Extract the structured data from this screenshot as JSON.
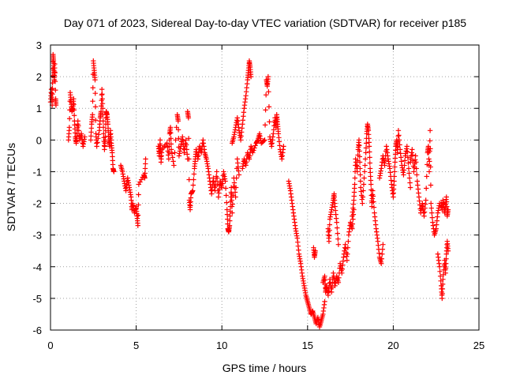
{
  "chart_data": {
    "type": "scatter",
    "title": "Day 071 of 2023, Sidereal Day-to-day VTEC variation (SDTVAR) for receiver p185",
    "xlabel": "GPS time / hours",
    "ylabel": "SDTVAR / TECUs",
    "xlim": [
      0,
      25
    ],
    "ylim": [
      -6,
      3
    ],
    "xticks": [
      0,
      5,
      10,
      15,
      20,
      25
    ],
    "yticks": [
      -6,
      -5,
      -4,
      -3,
      -2,
      -1,
      0,
      1,
      2,
      3
    ],
    "xtick_labels": [
      "0",
      "5",
      "10",
      "15",
      "20",
      "25"
    ],
    "ytick_labels": [
      "-6",
      "-5",
      "-4",
      "-3",
      "-2",
      "-1",
      "0",
      "1",
      "2",
      "3"
    ],
    "grid": true,
    "marker": "plus",
    "color": "#ff0000",
    "series": [
      {
        "name": "SDTVAR",
        "points": [
          [
            0.0,
            1.2
          ],
          [
            0.05,
            1.6
          ],
          [
            0.1,
            1.1
          ],
          [
            0.12,
            1.8
          ],
          [
            0.15,
            2.7
          ],
          [
            0.18,
            2.5
          ],
          [
            0.2,
            2.2
          ],
          [
            0.22,
            1.9
          ],
          [
            0.25,
            2.4
          ],
          [
            0.3,
            1.3
          ],
          [
            0.32,
            1.1
          ],
          [
            1.05,
            0.0
          ],
          [
            1.1,
            0.4
          ],
          [
            1.15,
            1.5
          ],
          [
            1.2,
            1.2
          ],
          [
            1.25,
            0.9
          ],
          [
            1.3,
            1.0
          ],
          [
            1.35,
            1.3
          ],
          [
            1.4,
            0.6
          ],
          [
            1.45,
            0.1
          ],
          [
            1.5,
            -0.1
          ],
          [
            1.55,
            0.2
          ],
          [
            1.6,
            0.6
          ],
          [
            1.7,
            0.0
          ],
          [
            1.8,
            0.2
          ],
          [
            1.9,
            -0.2
          ],
          [
            2.0,
            0.1
          ],
          [
            2.35,
            0.0
          ],
          [
            2.4,
            0.5
          ],
          [
            2.45,
            0.8
          ],
          [
            2.5,
            2.5
          ],
          [
            2.55,
            2.2
          ],
          [
            2.6,
            1.9
          ],
          [
            2.65,
            0.2
          ],
          [
            2.7,
            -0.2
          ],
          [
            2.85,
            0.3
          ],
          [
            2.9,
            0.7
          ],
          [
            2.95,
            0.9
          ],
          [
            3.0,
            1.6
          ],
          [
            3.05,
            1.0
          ],
          [
            3.1,
            0.2
          ],
          [
            3.15,
            -0.3
          ],
          [
            3.2,
            0.1
          ],
          [
            3.25,
            0.9
          ],
          [
            3.3,
            0.8
          ],
          [
            3.35,
            0.5
          ],
          [
            3.4,
            0.0
          ],
          [
            3.45,
            -0.2
          ],
          [
            3.5,
            0.3
          ],
          [
            3.55,
            -0.1
          ],
          [
            3.6,
            -0.4
          ],
          [
            3.65,
            -0.9
          ],
          [
            3.7,
            -1.0
          ],
          [
            4.1,
            -0.8
          ],
          [
            4.2,
            -1.0
          ],
          [
            4.3,
            -1.3
          ],
          [
            4.4,
            -1.6
          ],
          [
            4.5,
            -1.2
          ],
          [
            4.6,
            -1.5
          ],
          [
            4.7,
            -1.8
          ],
          [
            4.75,
            -2.2
          ],
          [
            4.8,
            -2.0
          ],
          [
            4.9,
            -2.3
          ],
          [
            5.0,
            -2.1
          ],
          [
            5.05,
            -2.4
          ],
          [
            5.1,
            -2.7
          ],
          [
            5.15,
            -1.4
          ],
          [
            5.45,
            -1.1
          ],
          [
            5.5,
            -1.2
          ],
          [
            5.55,
            -0.6
          ],
          [
            6.3,
            -0.2
          ],
          [
            6.35,
            -0.5
          ],
          [
            6.4,
            0.0
          ],
          [
            6.45,
            -0.7
          ],
          [
            6.5,
            -0.3
          ],
          [
            6.8,
            -0.1
          ],
          [
            6.9,
            -0.6
          ],
          [
            6.95,
            0.2
          ],
          [
            7.0,
            0.4
          ],
          [
            7.05,
            -0.3
          ],
          [
            7.2,
            -0.8
          ],
          [
            7.4,
            0.8
          ],
          [
            7.45,
            0.6
          ],
          [
            7.5,
            -0.5
          ],
          [
            7.6,
            -0.2
          ],
          [
            7.7,
            0.1
          ],
          [
            7.8,
            -0.4
          ],
          [
            7.9,
            0.0
          ],
          [
            8.0,
            -0.6
          ],
          [
            8.0,
            0.9
          ],
          [
            8.05,
            0.7
          ],
          [
            8.1,
            -1.9
          ],
          [
            8.15,
            -2.2
          ],
          [
            8.2,
            -1.7
          ],
          [
            8.3,
            -1.6
          ],
          [
            8.4,
            -0.9
          ],
          [
            8.45,
            -0.6
          ],
          [
            8.5,
            -0.3
          ],
          [
            8.6,
            -0.6
          ],
          [
            8.7,
            -0.2
          ],
          [
            8.8,
            -0.4
          ],
          [
            8.9,
            0.0
          ],
          [
            9.0,
            -0.4
          ],
          [
            9.1,
            -0.6
          ],
          [
            9.2,
            -0.9
          ],
          [
            9.3,
            -1.3
          ],
          [
            9.4,
            -1.7
          ],
          [
            9.5,
            -1.2
          ],
          [
            9.6,
            -1.6
          ],
          [
            9.7,
            -1.0
          ],
          [
            9.8,
            -1.8
          ],
          [
            9.9,
            -1.3
          ],
          [
            10.0,
            -1.5
          ],
          [
            10.1,
            -1.0
          ],
          [
            10.2,
            -1.3
          ],
          [
            10.3,
            -2.2
          ],
          [
            10.35,
            -2.8
          ],
          [
            10.4,
            -2.9
          ],
          [
            10.45,
            -2.7
          ],
          [
            10.5,
            -2.1
          ],
          [
            10.55,
            -1.5
          ],
          [
            10.6,
            -2.3
          ],
          [
            10.7,
            -1.2
          ],
          [
            10.8,
            -1.8
          ],
          [
            10.9,
            -0.6
          ],
          [
            11.0,
            -1.1
          ],
          [
            10.6,
            -0.1
          ],
          [
            10.7,
            0.1
          ],
          [
            10.8,
            0.4
          ],
          [
            10.9,
            0.7
          ],
          [
            11.0,
            0.3
          ],
          [
            11.1,
            0.0
          ],
          [
            11.2,
            0.5
          ],
          [
            11.3,
            1.0
          ],
          [
            11.4,
            1.4
          ],
          [
            11.5,
            1.9
          ],
          [
            11.55,
            2.2
          ],
          [
            11.6,
            2.5
          ],
          [
            11.65,
            2.3
          ],
          [
            11.7,
            2.0
          ],
          [
            11.2,
            -0.9
          ],
          [
            11.3,
            -0.6
          ],
          [
            11.4,
            -0.8
          ],
          [
            11.5,
            -0.4
          ],
          [
            11.6,
            -0.6
          ],
          [
            11.7,
            -0.2
          ],
          [
            11.8,
            -0.4
          ],
          [
            12.0,
            -0.1
          ],
          [
            12.1,
            0.0
          ],
          [
            12.2,
            0.2
          ],
          [
            12.3,
            -0.1
          ],
          [
            12.5,
            0.0
          ],
          [
            12.6,
            1.9
          ],
          [
            12.65,
            1.7
          ],
          [
            12.7,
            2.0
          ],
          [
            12.8,
            0.1
          ],
          [
            12.9,
            -0.2
          ],
          [
            13.0,
            0.2
          ],
          [
            13.1,
            0.7
          ],
          [
            13.15,
            0.4
          ],
          [
            13.2,
            0.8
          ],
          [
            13.25,
            0.5
          ],
          [
            13.3,
            0.2
          ],
          [
            13.4,
            -0.3
          ],
          [
            13.5,
            -0.6
          ],
          [
            13.6,
            -0.2
          ],
          [
            13.9,
            -1.3
          ],
          [
            14.0,
            -1.6
          ],
          [
            14.1,
            -2.0
          ],
          [
            14.2,
            -2.4
          ],
          [
            14.3,
            -2.8
          ],
          [
            14.4,
            -3.1
          ],
          [
            14.5,
            -3.6
          ],
          [
            14.6,
            -3.9
          ],
          [
            14.7,
            -4.3
          ],
          [
            14.8,
            -4.6
          ],
          [
            14.9,
            -4.9
          ],
          [
            15.0,
            -5.1
          ],
          [
            15.1,
            -5.3
          ],
          [
            15.2,
            -5.5
          ],
          [
            15.3,
            -5.4
          ],
          [
            15.4,
            -5.6
          ],
          [
            15.5,
            -5.8
          ],
          [
            15.6,
            -5.6
          ],
          [
            15.7,
            -5.9
          ],
          [
            15.8,
            -5.7
          ],
          [
            15.9,
            -5.5
          ],
          [
            16.0,
            -5.1
          ],
          [
            15.35,
            -3.4
          ],
          [
            15.4,
            -3.7
          ],
          [
            15.45,
            -3.5
          ],
          [
            15.9,
            -4.5
          ],
          [
            16.0,
            -4.3
          ],
          [
            16.05,
            -4.8
          ],
          [
            16.1,
            -4.6
          ],
          [
            16.2,
            -4.9
          ],
          [
            16.3,
            -4.4
          ],
          [
            16.4,
            -4.8
          ],
          [
            16.5,
            -4.2
          ],
          [
            16.6,
            -4.6
          ],
          [
            16.7,
            -4.3
          ],
          [
            16.8,
            -4.5
          ],
          [
            16.9,
            -3.9
          ],
          [
            17.0,
            -4.2
          ],
          [
            17.1,
            -3.7
          ],
          [
            17.2,
            -3.3
          ],
          [
            17.3,
            -3.8
          ],
          [
            17.4,
            -3.0
          ],
          [
            17.5,
            -2.6
          ],
          [
            17.6,
            -2.8
          ],
          [
            17.7,
            -2.2
          ],
          [
            16.2,
            -2.8
          ],
          [
            16.25,
            -3.2
          ],
          [
            16.3,
            -2.5
          ],
          [
            16.4,
            -2.2
          ],
          [
            16.5,
            -1.9
          ],
          [
            16.55,
            -1.7
          ],
          [
            16.6,
            -2.1
          ],
          [
            16.7,
            -2.6
          ],
          [
            16.8,
            -3.3
          ],
          [
            17.6,
            -2.4
          ],
          [
            17.7,
            -1.9
          ],
          [
            17.75,
            -1.4
          ],
          [
            17.8,
            -0.6
          ],
          [
            17.9,
            -1.0
          ],
          [
            17.95,
            -0.3
          ],
          [
            18.0,
            0.0
          ],
          [
            18.05,
            -0.7
          ],
          [
            18.1,
            -1.5
          ],
          [
            18.2,
            -2.0
          ],
          [
            18.3,
            -1.2
          ],
          [
            18.4,
            -0.4
          ],
          [
            18.45,
            0.2
          ],
          [
            18.5,
            0.5
          ],
          [
            18.55,
            0.3
          ],
          [
            18.6,
            -0.2
          ],
          [
            18.65,
            -0.9
          ],
          [
            18.7,
            -1.4
          ],
          [
            18.75,
            -2.1
          ],
          [
            18.8,
            -1.6
          ],
          [
            18.9,
            -2.3
          ],
          [
            19.0,
            -2.8
          ],
          [
            19.1,
            -3.2
          ],
          [
            19.2,
            -3.7
          ],
          [
            19.3,
            -3.9
          ],
          [
            19.4,
            -3.3
          ],
          [
            19.2,
            -1.2
          ],
          [
            19.3,
            -0.9
          ],
          [
            19.4,
            -0.5
          ],
          [
            19.5,
            -0.8
          ],
          [
            19.6,
            -0.2
          ],
          [
            19.7,
            -0.6
          ],
          [
            19.8,
            -0.9
          ],
          [
            19.9,
            -1.4
          ],
          [
            20.0,
            -1.8
          ],
          [
            20.05,
            -1.3
          ],
          [
            20.1,
            -0.7
          ],
          [
            20.15,
            -0.2
          ],
          [
            20.2,
            0.0
          ],
          [
            20.25,
            -0.4
          ],
          [
            20.3,
            0.3
          ],
          [
            20.4,
            -0.3
          ],
          [
            20.5,
            -0.8
          ],
          [
            20.6,
            -1.1
          ],
          [
            20.7,
            -0.5
          ],
          [
            20.8,
            -0.2
          ],
          [
            20.9,
            -0.9
          ],
          [
            21.0,
            -1.5
          ],
          [
            21.0,
            -0.7
          ],
          [
            21.1,
            -0.3
          ],
          [
            21.2,
            -1.0
          ],
          [
            21.3,
            -0.5
          ],
          [
            21.4,
            -1.3
          ],
          [
            21.5,
            -1.8
          ],
          [
            21.6,
            -2.3
          ],
          [
            21.7,
            -2.0
          ],
          [
            21.8,
            -2.4
          ],
          [
            21.9,
            -1.9
          ],
          [
            22.0,
            -0.4
          ],
          [
            22.05,
            -0.2
          ],
          [
            22.1,
            -1.0
          ],
          [
            22.15,
            0.3
          ],
          [
            22.2,
            -2.0
          ],
          [
            22.3,
            -2.6
          ],
          [
            22.4,
            -3.0
          ],
          [
            22.5,
            -2.8
          ],
          [
            22.6,
            -2.3
          ],
          [
            22.7,
            -2.0
          ],
          [
            22.6,
            -3.6
          ],
          [
            22.7,
            -4.0
          ],
          [
            22.8,
            -4.6
          ],
          [
            22.85,
            -5.0
          ],
          [
            22.9,
            -4.4
          ],
          [
            23.0,
            -3.8
          ],
          [
            23.05,
            -4.2
          ],
          [
            23.1,
            -3.6
          ],
          [
            23.15,
            -3.2
          ],
          [
            23.2,
            -3.5
          ],
          [
            22.8,
            -2.0
          ],
          [
            22.85,
            -2.2
          ],
          [
            22.9,
            -1.9
          ],
          [
            23.0,
            -2.3
          ],
          [
            23.05,
            -2.1
          ],
          [
            23.1,
            -1.8
          ],
          [
            23.15,
            -2.4
          ],
          [
            23.2,
            -2.2
          ]
        ]
      }
    ]
  }
}
